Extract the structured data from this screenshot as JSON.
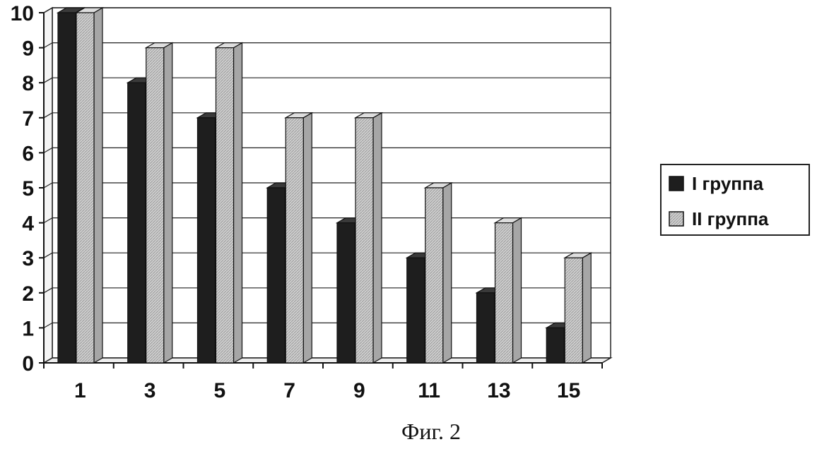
{
  "chart_data": {
    "type": "bar",
    "categories": [
      "1",
      "3",
      "5",
      "7",
      "9",
      "11",
      "13",
      "15"
    ],
    "series": [
      {
        "name": "I группа",
        "values": [
          10,
          8,
          7,
          5,
          4,
          3,
          2,
          1
        ],
        "color": "#1e1e1e"
      },
      {
        "name": "II группа",
        "values": [
          10,
          9,
          9,
          7,
          7,
          5,
          4,
          3
        ],
        "color": "#c4c4c4"
      }
    ],
    "y_ticks": [
      "0",
      "1",
      "2",
      "3",
      "4",
      "5",
      "6",
      "7",
      "8",
      "9",
      "10"
    ],
    "ylim": [
      0,
      10
    ],
    "grid": true,
    "style": "3d-clustered-columns",
    "legend_position": "right",
    "caption": "Фиг. 2"
  }
}
